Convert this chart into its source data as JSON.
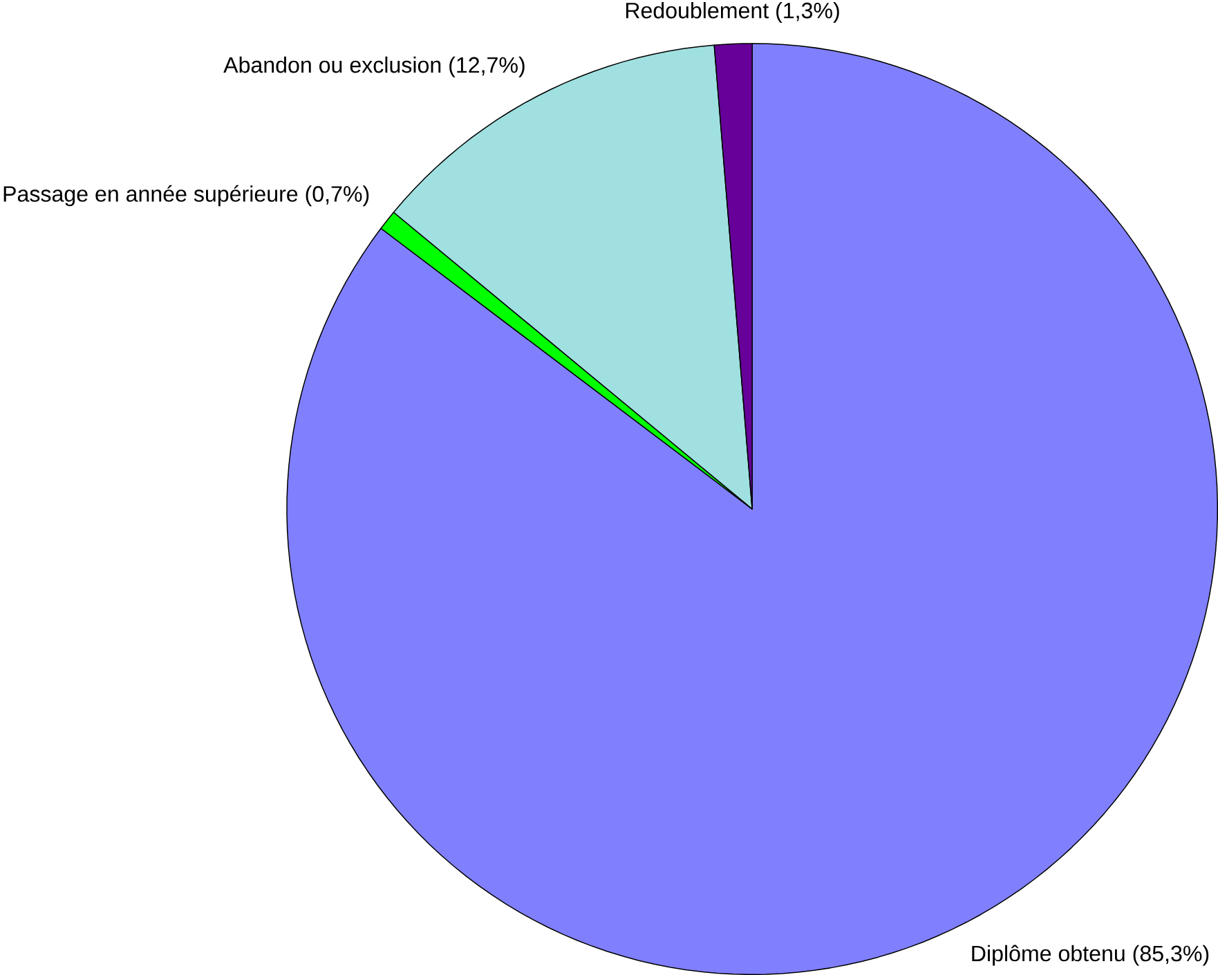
{
  "chart_data": {
    "type": "pie",
    "categories": [
      "Diplôme obtenu (85,3%)",
      "Passage en année supérieure (0,7%)",
      "Abandon ou exclusion (12,7%)",
      "Redoublement (1,3%)"
    ],
    "values": [
      85.3,
      0.7,
      12.7,
      1.3
    ],
    "colors": [
      "#8080ff",
      "#00ff00",
      "#a0e0e0",
      "#660099"
    ]
  }
}
